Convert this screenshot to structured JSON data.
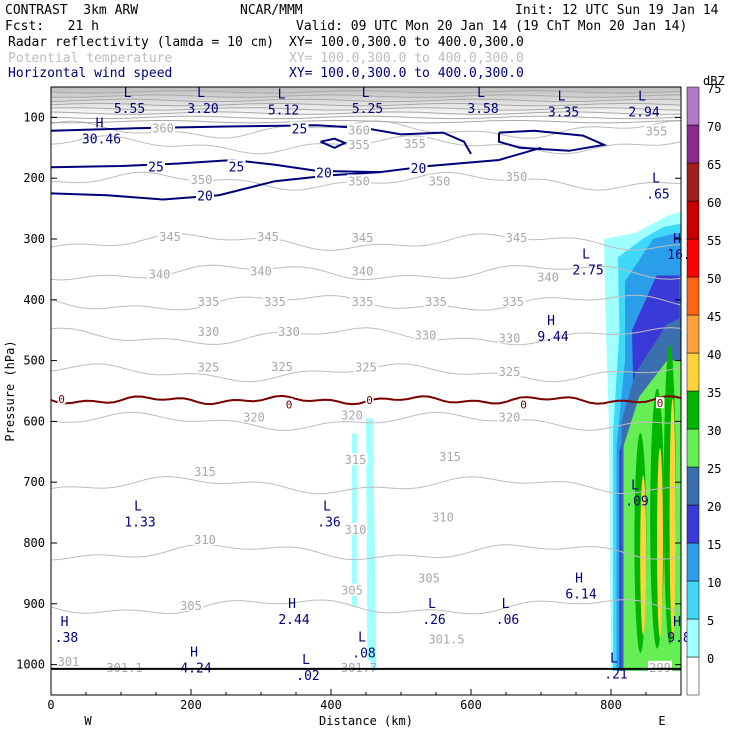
{
  "header": {
    "model": "CONTRAST  3km ARW",
    "org": "NCAR/MMM",
    "init": "Init: 12 UTC Sun 19 Jan 14",
    "fcst": "Fcst:   21 h",
    "valid": "Valid: 09 UTC Mon 20 Jan 14 (19 ChT Mon 20 Jan 14)",
    "fields": [
      {
        "name": "Radar reflectivity (lamda = 10 cm)",
        "xy": "XY= 100.0,300.0 to 400.0,300.0",
        "color": "#000000"
      },
      {
        "name": "Potential temperature",
        "xy": "XY= 100.0,300.0 to 400.0,300.0",
        "color": "#bdbdbd"
      },
      {
        "name": "Horizontal wind speed",
        "xy": "XY= 100.0,300.0 to 400.0,300.0",
        "color": "#00007a"
      }
    ]
  },
  "chart_data": {
    "type": "heatmap",
    "xlabel": "Distance (km)",
    "ylabel": "Pressure (hPa)",
    "xlim": [
      0,
      900
    ],
    "ylim": [
      1050,
      50
    ],
    "x_ticks": [
      0,
      200,
      400,
      600,
      800
    ],
    "y_ticks": [
      100,
      200,
      300,
      400,
      500,
      600,
      700,
      800,
      900,
      1000
    ],
    "x_end_labels": {
      "left": "W",
      "right": "E"
    },
    "colorbar": {
      "unit": "dBZ",
      "levels": [
        0,
        5,
        10,
        15,
        20,
        25,
        30,
        35,
        40,
        45,
        50,
        55,
        60,
        65,
        70,
        75
      ],
      "colors": [
        "#ffffff",
        "#a0ffff",
        "#40d8f8",
        "#2a9ee8",
        "#3a3ad8",
        "#3c6fb0",
        "#66ee55",
        "#00b400",
        "#ffd23c",
        "#ffa23c",
        "#ff6414",
        "#ff0000",
        "#c80000",
        "#a01e1e",
        "#8a2a8a",
        "#b478c8"
      ]
    },
    "theta_contours": [
      {
        "label": "305",
        "p": 905
      },
      {
        "label": "310",
        "p": 815
      },
      {
        "label": "315",
        "p": 705
      },
      {
        "label": "320",
        "p": 600
      },
      {
        "label": "325",
        "p": 520
      },
      {
        "label": "330",
        "p": 460
      },
      {
        "label": "335",
        "p": 405
      },
      {
        "label": "340",
        "p": 355
      },
      {
        "label": "345",
        "p": 305
      },
      {
        "label": "350",
        "p": 205
      },
      {
        "label": "355",
        "p": 145
      },
      {
        "label": "360",
        "p": 120
      }
    ],
    "theta_labels": [
      {
        "text": "305",
        "x": 200,
        "p": 905
      },
      {
        "text": "305",
        "x": 430,
        "p": 880
      },
      {
        "text": "305",
        "x": 540,
        "p": 860
      },
      {
        "text": "310",
        "x": 220,
        "p": 797
      },
      {
        "text": "310",
        "x": 435,
        "p": 780
      },
      {
        "text": "310",
        "x": 560,
        "p": 760
      },
      {
        "text": "315",
        "x": 220,
        "p": 685
      },
      {
        "text": "315",
        "x": 435,
        "p": 665
      },
      {
        "text": "315",
        "x": 570,
        "p": 660
      },
      {
        "text": "320",
        "x": 290,
        "p": 595
      },
      {
        "text": "320",
        "x": 430,
        "p": 592
      },
      {
        "text": "320",
        "x": 655,
        "p": 595
      },
      {
        "text": "325",
        "x": 225,
        "p": 513
      },
      {
        "text": "325",
        "x": 330,
        "p": 512
      },
      {
        "text": "325",
        "x": 450,
        "p": 513
      },
      {
        "text": "325",
        "x": 655,
        "p": 520
      },
      {
        "text": "330",
        "x": 225,
        "p": 455
      },
      {
        "text": "330",
        "x": 340,
        "p": 455
      },
      {
        "text": "330",
        "x": 535,
        "p": 460
      },
      {
        "text": "330",
        "x": 655,
        "p": 465
      },
      {
        "text": "335",
        "x": 225,
        "p": 405
      },
      {
        "text": "335",
        "x": 320,
        "p": 405
      },
      {
        "text": "335",
        "x": 445,
        "p": 405
      },
      {
        "text": "335",
        "x": 550,
        "p": 405
      },
      {
        "text": "335",
        "x": 660,
        "p": 405
      },
      {
        "text": "340",
        "x": 155,
        "p": 360
      },
      {
        "text": "340",
        "x": 300,
        "p": 355
      },
      {
        "text": "340",
        "x": 445,
        "p": 355
      },
      {
        "text": "340",
        "x": 710,
        "p": 365
      },
      {
        "text": "345",
        "x": 170,
        "p": 298
      },
      {
        "text": "345",
        "x": 310,
        "p": 298
      },
      {
        "text": "345",
        "x": 445,
        "p": 300
      },
      {
        "text": "345",
        "x": 665,
        "p": 300
      },
      {
        "text": "350",
        "x": 215,
        "p": 205
      },
      {
        "text": "350",
        "x": 440,
        "p": 207
      },
      {
        "text": "350",
        "x": 555,
        "p": 207
      },
      {
        "text": "350",
        "x": 665,
        "p": 200
      },
      {
        "text": "355",
        "x": 440,
        "p": 147
      },
      {
        "text": "355",
        "x": 520,
        "p": 145
      },
      {
        "text": "355",
        "x": 865,
        "p": 125
      },
      {
        "text": "360",
        "x": 160,
        "p": 120
      },
      {
        "text": "360",
        "x": 440,
        "p": 123
      },
      {
        "text": "301",
        "x": 25,
        "p": 997
      },
      {
        "text": "301.1",
        "x": 105,
        "p": 1007
      },
      {
        "text": "301.5",
        "x": 565,
        "p": 960
      },
      {
        "text": "301.7",
        "x": 440,
        "p": 1007
      },
      {
        "text": "299",
        "x": 870,
        "p": 1007
      }
    ],
    "wind_labels": [
      {
        "text": "25",
        "x": 355,
        "p": 120
      },
      {
        "text": "25",
        "x": 150,
        "p": 182
      },
      {
        "text": "25",
        "x": 265,
        "p": 182
      },
      {
        "text": "20",
        "x": 390,
        "p": 192
      },
      {
        "text": "20",
        "x": 525,
        "p": 185
      },
      {
        "text": "20",
        "x": 220,
        "p": 230
      }
    ],
    "zero_dbz_labels": [
      {
        "text": "0",
        "x": 15,
        "p": 563
      },
      {
        "text": "0",
        "x": 340,
        "p": 572
      },
      {
        "text": "0",
        "x": 455,
        "p": 565
      },
      {
        "text": "0",
        "x": 675,
        "p": 572
      },
      {
        "text": "0",
        "x": 870,
        "p": 570
      }
    ],
    "extrema": [
      {
        "kind": "L",
        "value": "5.55",
        "x": 95,
        "p": 80,
        "color": "navy"
      },
      {
        "kind": "L",
        "value": "3.20",
        "x": 200,
        "p": 80,
        "color": "navy"
      },
      {
        "kind": "L",
        "value": "5.12",
        "x": 315,
        "p": 82,
        "color": "navy"
      },
      {
        "kind": "L",
        "value": "5.25",
        "x": 435,
        "p": 80,
        "color": "navy"
      },
      {
        "kind": "L",
        "value": "3.58",
        "x": 600,
        "p": 80,
        "color": "navy"
      },
      {
        "kind": "L",
        "value": "3.35",
        "x": 715,
        "p": 85,
        "color": "navy"
      },
      {
        "kind": "L",
        "value": "2.94",
        "x": 830,
        "p": 85,
        "color": "navy"
      },
      {
        "kind": "H",
        "value": "30.46",
        "x": 55,
        "p": 130,
        "color": "navy"
      },
      {
        "kind": "L",
        "value": ".65",
        "x": 850,
        "p": 220,
        "color": "navy"
      },
      {
        "kind": "H",
        "value": "16.",
        "x": 880,
        "p": 320,
        "color": "navy"
      },
      {
        "kind": "L",
        "value": "2.75",
        "x": 750,
        "p": 345,
        "color": "navy"
      },
      {
        "kind": "H",
        "value": "9.44",
        "x": 700,
        "p": 455,
        "color": "navy"
      },
      {
        "kind": "L",
        "value": ".09",
        "x": 820,
        "p": 725,
        "color": "navy"
      },
      {
        "kind": "L",
        "value": "1.33",
        "x": 110,
        "p": 760,
        "color": "navy"
      },
      {
        "kind": "L",
        "value": ".36",
        "x": 380,
        "p": 760,
        "color": "navy"
      },
      {
        "kind": "H",
        "value": "6.14",
        "x": 740,
        "p": 878,
        "color": "navy"
      },
      {
        "kind": "H",
        "value": "2.44",
        "x": 330,
        "p": 920,
        "color": "navy"
      },
      {
        "kind": "L",
        "value": ".26",
        "x": 530,
        "p": 920,
        "color": "navy"
      },
      {
        "kind": "L",
        "value": ".06",
        "x": 635,
        "p": 920,
        "color": "navy"
      },
      {
        "kind": "H",
        "value": "9.8",
        "x": 880,
        "p": 950,
        "color": "navy"
      },
      {
        "kind": "H",
        "value": ".38",
        "x": 5,
        "p": 950,
        "color": "navy"
      },
      {
        "kind": "L",
        "value": ".08",
        "x": 430,
        "p": 975,
        "color": "navy"
      },
      {
        "kind": "H",
        "value": "4.24",
        "x": 190,
        "p": 1000,
        "color": "navy"
      },
      {
        "kind": "L",
        "value": ".02",
        "x": 350,
        "p": 1012,
        "color": "navy"
      },
      {
        "kind": "L",
        "value": ".21",
        "x": 790,
        "p": 1010,
        "color": "navy"
      }
    ]
  }
}
